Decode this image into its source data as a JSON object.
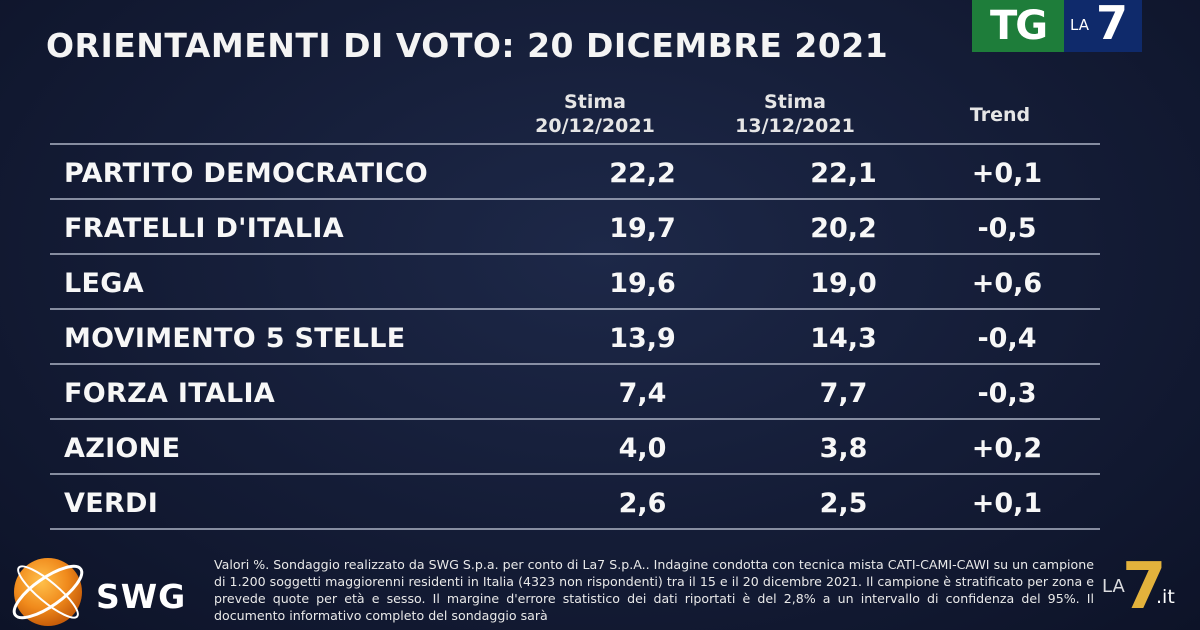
{
  "title": "ORIENTAMENTI DI VOTO: 20 DICEMBRE 2021",
  "logo_tg": {
    "tg": "TG",
    "la": "LA",
    "seven": "7"
  },
  "columns": {
    "col1": {
      "line1": "Stima",
      "line2": "20/12/2021"
    },
    "col2": {
      "line1": "Stima",
      "line2": "13/12/2021"
    },
    "col3": {
      "line1": "Trend"
    }
  },
  "rows": [
    {
      "party": "PARTITO DEMOCRATICO",
      "v1": "22,2",
      "v2": "22,1",
      "trend": "+0,1"
    },
    {
      "party": "FRATELLI D'ITALIA",
      "v1": "19,7",
      "v2": "20,2",
      "trend": "-0,5"
    },
    {
      "party": "LEGA",
      "v1": "19,6",
      "v2": "19,0",
      "trend": "+0,6"
    },
    {
      "party": "MOVIMENTO 5 STELLE",
      "v1": "13,9",
      "v2": "14,3",
      "trend": "-0,4"
    },
    {
      "party": "FORZA ITALIA",
      "v1": "7,4",
      "v2": "7,7",
      "trend": "-0,3"
    },
    {
      "party": "AZIONE",
      "v1": "4,0",
      "v2": "3,8",
      "trend": "+0,2"
    },
    {
      "party": "VERDI",
      "v1": "2,6",
      "v2": "2,5",
      "trend": "+0,1"
    }
  ],
  "swg": {
    "label": "SWG"
  },
  "footnote": "Valori %. Sondaggio realizzato da SWG S.p.a. per conto di La7 S.p.A.. Indagine condotta con tecnica mista CATI-CAMI-CAWI su un campione di 1.200 soggetti maggiorenni residenti in Italia (4323 non rispondenti) tra il 15 e il 20 dicembre 2021. Il campione è stratificato per zona e prevede quote per età e sesso. Il margine d'errore statistico dei dati riportati è del 2,8% a un intervallo di confidenza del 95%. Il documento informativo completo del sondaggio sarà",
  "la7it": {
    "la": "LA",
    "seven": "7",
    "it": ".it"
  },
  "colors": {
    "background": "#141c36",
    "tg_green": "#1e7d3a",
    "tg_blue": "#0f2a6b",
    "swg_orange": "#f08a1c",
    "la7_gold": "#e3b23c"
  }
}
